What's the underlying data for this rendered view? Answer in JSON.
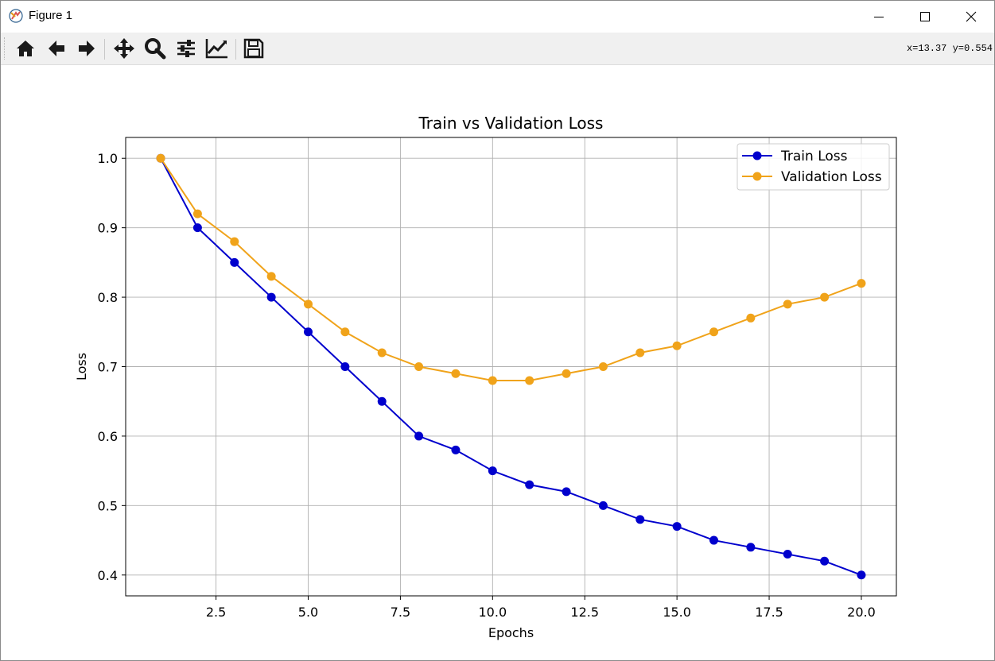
{
  "window": {
    "title": "Figure 1",
    "coords_readout": "x=13.37 y=0.554"
  },
  "toolbar": {
    "buttons": [
      "home-icon",
      "back-arrow-icon",
      "forward-arrow-icon",
      "pan-icon",
      "zoom-icon",
      "configure-subplots-icon",
      "edit-axis-icon",
      "save-icon"
    ]
  },
  "chart_data": {
    "type": "line",
    "title": "Train vs Validation Loss",
    "xlabel": "Epochs",
    "ylabel": "Loss",
    "xlim": [
      0.05,
      20.95
    ],
    "ylim": [
      0.37,
      1.03
    ],
    "xticks": [
      "2.5",
      "5.0",
      "7.5",
      "10.0",
      "12.5",
      "15.0",
      "17.5",
      "20.0"
    ],
    "yticks": [
      "0.4",
      "0.5",
      "0.6",
      "0.7",
      "0.8",
      "0.9",
      "1.0"
    ],
    "grid": true,
    "legend_position": "upper right",
    "x": [
      1,
      2,
      3,
      4,
      5,
      6,
      7,
      8,
      9,
      10,
      11,
      12,
      13,
      14,
      15,
      16,
      17,
      18,
      19,
      20
    ],
    "series": [
      {
        "name": "Train Loss",
        "color": "#0000cd",
        "marker": "circle",
        "values": [
          1.0,
          0.9,
          0.85,
          0.8,
          0.75,
          0.7,
          0.65,
          0.6,
          0.58,
          0.55,
          0.53,
          0.52,
          0.5,
          0.48,
          0.47,
          0.45,
          0.44,
          0.43,
          0.42,
          0.4
        ]
      },
      {
        "name": "Validation Loss",
        "color": "#f0a31a",
        "marker": "circle",
        "values": [
          1.0,
          0.92,
          0.88,
          0.83,
          0.79,
          0.75,
          0.72,
          0.7,
          0.69,
          0.68,
          0.68,
          0.69,
          0.7,
          0.72,
          0.73,
          0.75,
          0.77,
          0.79,
          0.8,
          0.82
        ]
      }
    ]
  }
}
